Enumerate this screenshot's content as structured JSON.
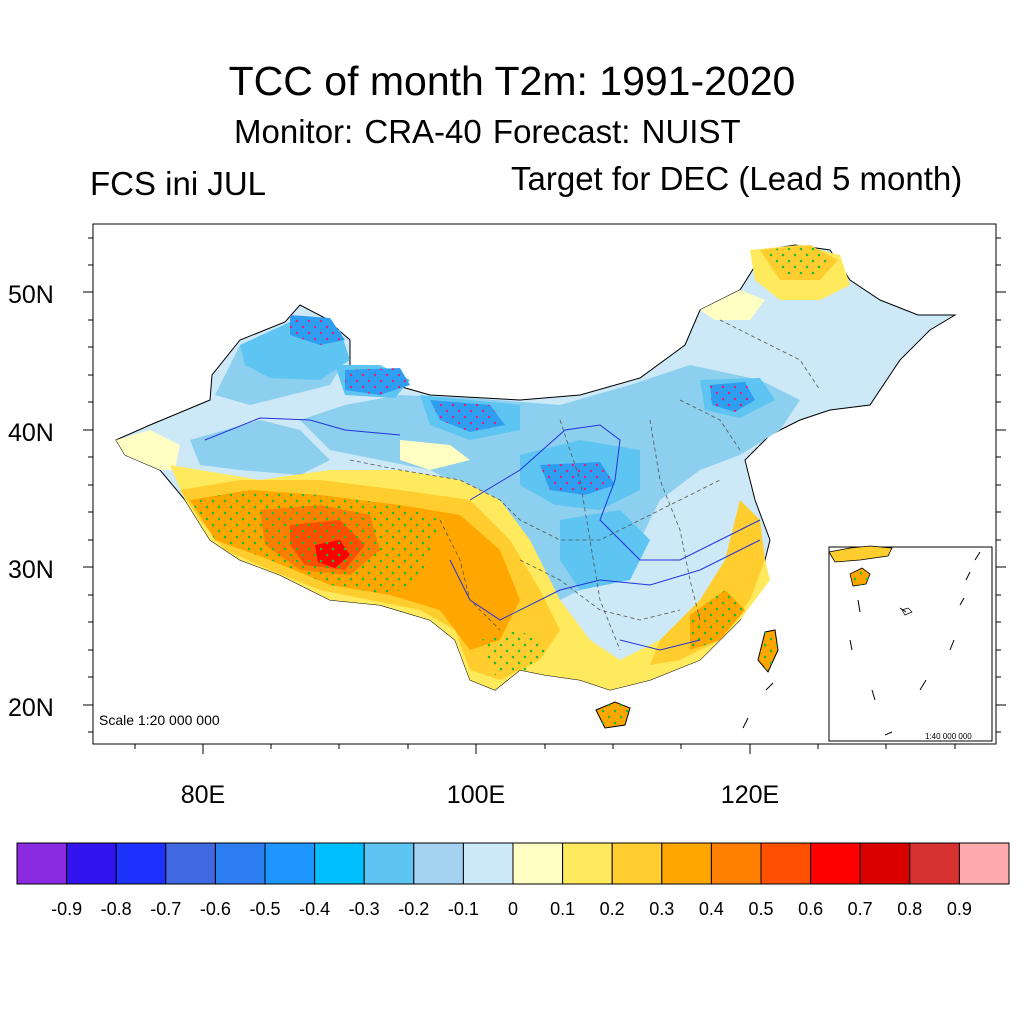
{
  "title": "TCC of month T2m: 1991-2020",
  "subtitle": "Monitor: CRA-40   Forecast: NUIST",
  "left_label": "FCS ini JUL",
  "right_label": "Target for DEC (Lead 5 month)",
  "map": {
    "lat_labels": [
      "50N",
      "40N",
      "30N",
      "20N"
    ],
    "lon_labels": [
      "80E",
      "100E",
      "120E"
    ],
    "scale_text": "Scale 1:20 000 000",
    "inset_scale_text": "1:40 000 000"
  },
  "colorbar": {
    "colors": [
      "#8a2be2",
      "#3214f0",
      "#1e32ff",
      "#4169e1",
      "#2d7ef0",
      "#1e96ff",
      "#00bfff",
      "#5ec4f2",
      "#a3d3f0",
      "#cde8f7",
      "#ffffc4",
      "#ffe95c",
      "#ffce2e",
      "#ffa600",
      "#ff8000",
      "#ff4f00",
      "#ff0000",
      "#d90000",
      "#d73232",
      "#ffaaaa"
    ],
    "labels": [
      "-0.9",
      "-0.8",
      "-0.7",
      "-0.6",
      "-0.5",
      "-0.4",
      "-0.3",
      "-0.2",
      "-0.1",
      "0",
      "0.1",
      "0.2",
      "0.3",
      "0.4",
      "0.5",
      "0.6",
      "0.7",
      "0.8",
      "0.9"
    ]
  }
}
